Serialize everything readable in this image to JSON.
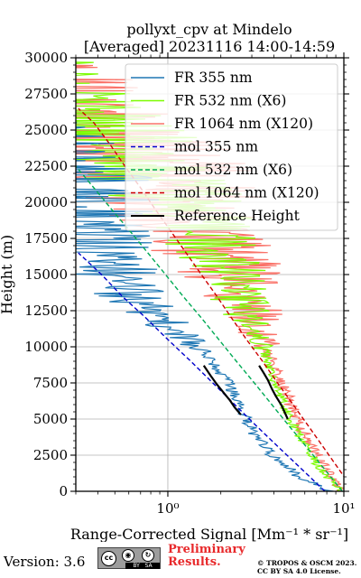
{
  "chart_data": {
    "type": "line",
    "title": "pollyxt_cpv at Mindelo",
    "subtitle": "[Averaged] 20231116 14:00-14:59",
    "xlabel": "Range-Corrected Signal [Mm⁻¹ * sr⁻¹]",
    "ylabel": "Height (m)",
    "xscale": "log",
    "xlim": [
      0.3,
      10
    ],
    "ylim": [
      0,
      30000
    ],
    "xticks": [
      1,
      10
    ],
    "xtick_labels": [
      "10⁰",
      "10¹"
    ],
    "yticks": [
      0,
      2500,
      5000,
      7500,
      10000,
      12500,
      15000,
      17500,
      20000,
      22500,
      25000,
      27500,
      30000
    ],
    "ytick_labels": [
      "0",
      "2500",
      "5000",
      "7500",
      "10000",
      "12500",
      "15000",
      "17500",
      "20000",
      "22500",
      "25000",
      "27500",
      "30000"
    ],
    "grid": true,
    "legend_position": "top-right",
    "series": [
      {
        "name": "FR 355 nm",
        "color": "#1f77b4",
        "style": "solid",
        "x": [
          8.2,
          5.6,
          3.9,
          3.1,
          2.8,
          2.6,
          2.2,
          1.9,
          1.6,
          1.3,
          1.0,
          0.8,
          0.65,
          0.5,
          0.4,
          0.35,
          0.3
        ],
        "y": [
          0,
          1000,
          2500,
          4000,
          5000,
          6000,
          7500,
          8500,
          9500,
          10500,
          11500,
          12500,
          13500,
          15000,
          17000,
          19000,
          21000
        ]
      },
      {
        "name": "FR 532 nm (X6)",
        "color": "#7cfc00",
        "style": "solid",
        "x": [
          9.5,
          8.0,
          6.5,
          5.5,
          4.8,
          4.2,
          3.8,
          3.4,
          3.0,
          2.6,
          2.3,
          2.0,
          1.7,
          1.4,
          1.1,
          0.9,
          0.7
        ],
        "y": [
          0,
          1000,
          2500,
          4000,
          5500,
          7000,
          8500,
          10000,
          11500,
          13000,
          14500,
          16000,
          17500,
          19000,
          20500,
          22000,
          23500
        ]
      },
      {
        "name": "FR 1064 nm (X120)",
        "color": "#fa7268",
        "style": "solid",
        "x": [
          9.5,
          8.5,
          7.0,
          6.0,
          5.2,
          4.6,
          4.0,
          3.6,
          3.2,
          2.8,
          2.4,
          2.0,
          1.6,
          1.3,
          1.0,
          0.8
        ],
        "y": [
          0,
          1000,
          2500,
          4000,
          5500,
          7000,
          8500,
          10000,
          11500,
          13000,
          14500,
          16000,
          17500,
          19000,
          20500,
          22000
        ]
      },
      {
        "name": "mol 355 nm",
        "color": "#0000cc",
        "style": "dashed",
        "x": [
          7.8,
          5.8,
          4.3,
          3.2,
          2.4,
          1.8,
          1.35,
          1.0,
          0.75,
          0.55,
          0.42,
          0.31
        ],
        "y": [
          0,
          1500,
          3000,
          4500,
          6000,
          7500,
          9000,
          10500,
          12000,
          13500,
          15000,
          16500
        ]
      },
      {
        "name": "mol 532 nm (X6)",
        "color": "#00aa55",
        "style": "dashed",
        "x": [
          9.8,
          7.8,
          6.2,
          4.9,
          3.9,
          3.1,
          2.45,
          1.95,
          1.55,
          1.22,
          0.97,
          0.77,
          0.61,
          0.48,
          0.38,
          0.3
        ],
        "y": [
          0,
          1500,
          3000,
          4500,
          6000,
          7500,
          9000,
          10500,
          12000,
          13500,
          15000,
          16500,
          18000,
          19500,
          21000,
          22500
        ]
      },
      {
        "name": "mol 1064 nm (X120)",
        "color": "#cc0000",
        "style": "dashed",
        "x": [
          11.5,
          9.4,
          7.7,
          6.3,
          5.15,
          4.2,
          3.45,
          2.8,
          2.3,
          1.9,
          1.55,
          1.27,
          1.04,
          0.85,
          0.7,
          0.57,
          0.47,
          0.38,
          0.31
        ],
        "y": [
          0,
          1500,
          3000,
          4500,
          6000,
          7500,
          9000,
          10500,
          12000,
          13500,
          15000,
          16500,
          18000,
          19500,
          21000,
          22500,
          24000,
          25500,
          26500
        ]
      },
      {
        "name": "Reference Height",
        "color": "#000000",
        "style": "solid",
        "segments": [
          {
            "x": [
              1.6,
              1.75,
              1.9,
              2.05,
              2.25,
              2.4,
              2.6
            ],
            "y": [
              8700,
              8000,
              7400,
              6900,
              6300,
              5800,
              5300
            ]
          },
          {
            "x": [
              3.3,
              3.5,
              3.7,
              3.9,
              4.1,
              4.4,
              4.6,
              4.8
            ],
            "y": [
              8700,
              8200,
              7700,
              7100,
              6600,
              6000,
              5500,
              5000
            ]
          }
        ]
      }
    ]
  },
  "footer": {
    "version": "Version: 3.6",
    "license_badge": {
      "cc": "cc",
      "by": "BY",
      "sa": "SA"
    },
    "preliminary_1": "Preliminary",
    "preliminary_2": "Results.",
    "copyright_1": "© TROPOS & OSCM 2023.",
    "copyright_2": "CC BY SA 4.0 License."
  }
}
